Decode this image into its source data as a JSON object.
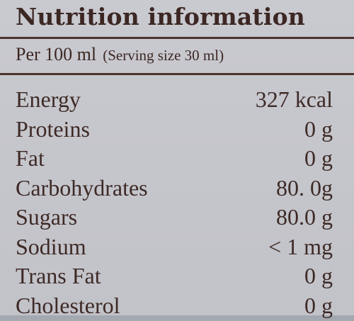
{
  "label": {
    "title": "Nutrition information",
    "basis": "Per 100 ml",
    "serving": "(Serving size 30 ml)"
  },
  "nutrients": [
    {
      "name": "Energy",
      "value": "327 kcal"
    },
    {
      "name": "Proteins",
      "value": "0 g"
    },
    {
      "name": "Fat",
      "value": "0 g"
    },
    {
      "name": "Carbohydrates",
      "value": "80. 0g"
    },
    {
      "name": "Sugars",
      "value": "80.0 g"
    },
    {
      "name": "Sodium",
      "value": "< 1 mg"
    },
    {
      "name": "Trans Fat",
      "value": "0 g"
    },
    {
      "name": "Cholesterol",
      "value": "0 g"
    }
  ],
  "colors": {
    "background": "#c6c7cd",
    "text": "#3e2a26",
    "rule": "#4a3430"
  }
}
